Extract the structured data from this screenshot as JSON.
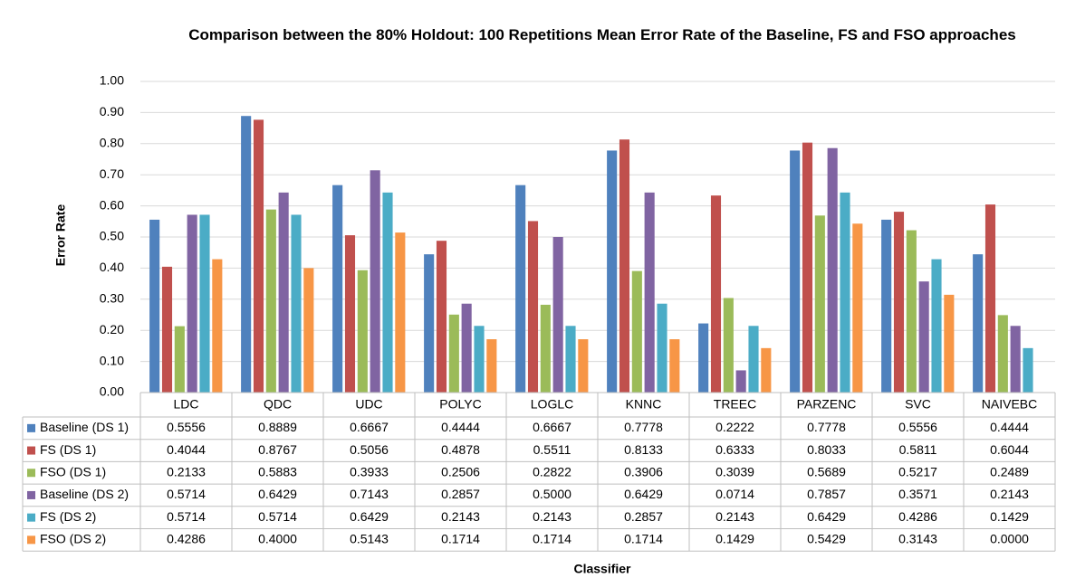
{
  "chart_data": {
    "type": "bar",
    "title": "Comparison between the 80% Holdout: 100 Repetitions Mean Error Rate of the Baseline, FS and FSO approaches",
    "x_label": "Classifier",
    "y_label": "Error Rate",
    "categories": [
      "LDC",
      "QDC",
      "UDC",
      "POLYC",
      "LOGLC",
      "KNNC",
      "TREEC",
      "PARZENC",
      "SVC",
      "NAIVEBC"
    ],
    "series": [
      {
        "name": "Baseline (DS 1)",
        "color": "#4f81bd",
        "values": [
          0.5556,
          0.8889,
          0.6667,
          0.4444,
          0.6667,
          0.7778,
          0.2222,
          0.7778,
          0.5556,
          0.4444
        ]
      },
      {
        "name": "FS (DS 1)",
        "color": "#c0504d",
        "values": [
          0.4044,
          0.8767,
          0.5056,
          0.4878,
          0.5511,
          0.8133,
          0.6333,
          0.8033,
          0.5811,
          0.6044
        ]
      },
      {
        "name": "FSO (DS 1)",
        "color": "#9bbb59",
        "values": [
          0.2133,
          0.5883,
          0.3933,
          0.2506,
          0.2822,
          0.3906,
          0.3039,
          0.5689,
          0.5217,
          0.2489
        ]
      },
      {
        "name": "Baseline (DS 2)",
        "color": "#8064a2",
        "values": [
          0.5714,
          0.6429,
          0.7143,
          0.2857,
          0.5,
          0.6429,
          0.0714,
          0.7857,
          0.3571,
          0.2143
        ],
        "value_labels": [
          "0.5714",
          "0.6429",
          "0.7143",
          "0.2857",
          "0.5000",
          "0.6429",
          "0.0714",
          "0.7857",
          "0.3571",
          "0.2143"
        ]
      },
      {
        "name": "FS (DS 2)",
        "color": "#4bacc6",
        "values": [
          0.5714,
          0.5714,
          0.6429,
          0.2143,
          0.2143,
          0.2857,
          0.2143,
          0.6429,
          0.4286,
          0.1429
        ]
      },
      {
        "name": "FSO (DS 2)",
        "color": "#f79646",
        "values": [
          0.4286,
          0.4,
          0.5143,
          0.1714,
          0.1714,
          0.1714,
          0.1429,
          0.5429,
          0.3143,
          0
        ],
        "value_labels": [
          "0.4286",
          "0.4000",
          "0.5143",
          "0.1714",
          "0.1714",
          "0.1714",
          "0.1429",
          "0.5429",
          "0.3143",
          "0.0000"
        ]
      }
    ],
    "ylim": [
      0,
      1
    ],
    "yticks": [
      {
        "value": 0,
        "label": "0.00"
      },
      {
        "value": 0.1,
        "label": "0.10"
      },
      {
        "value": 0.2,
        "label": "0.20"
      },
      {
        "value": 0.3,
        "label": "0.30"
      },
      {
        "value": 0.4,
        "label": "0.40"
      },
      {
        "value": 0.5,
        "label": "0.50"
      },
      {
        "value": 0.6,
        "label": "0.60"
      },
      {
        "value": 0.7,
        "label": "0.70"
      },
      {
        "value": 0.8,
        "label": "0.80"
      },
      {
        "value": 0.9,
        "label": "0.90"
      },
      {
        "value": 1,
        "label": "1.00"
      }
    ],
    "grid": true
  }
}
